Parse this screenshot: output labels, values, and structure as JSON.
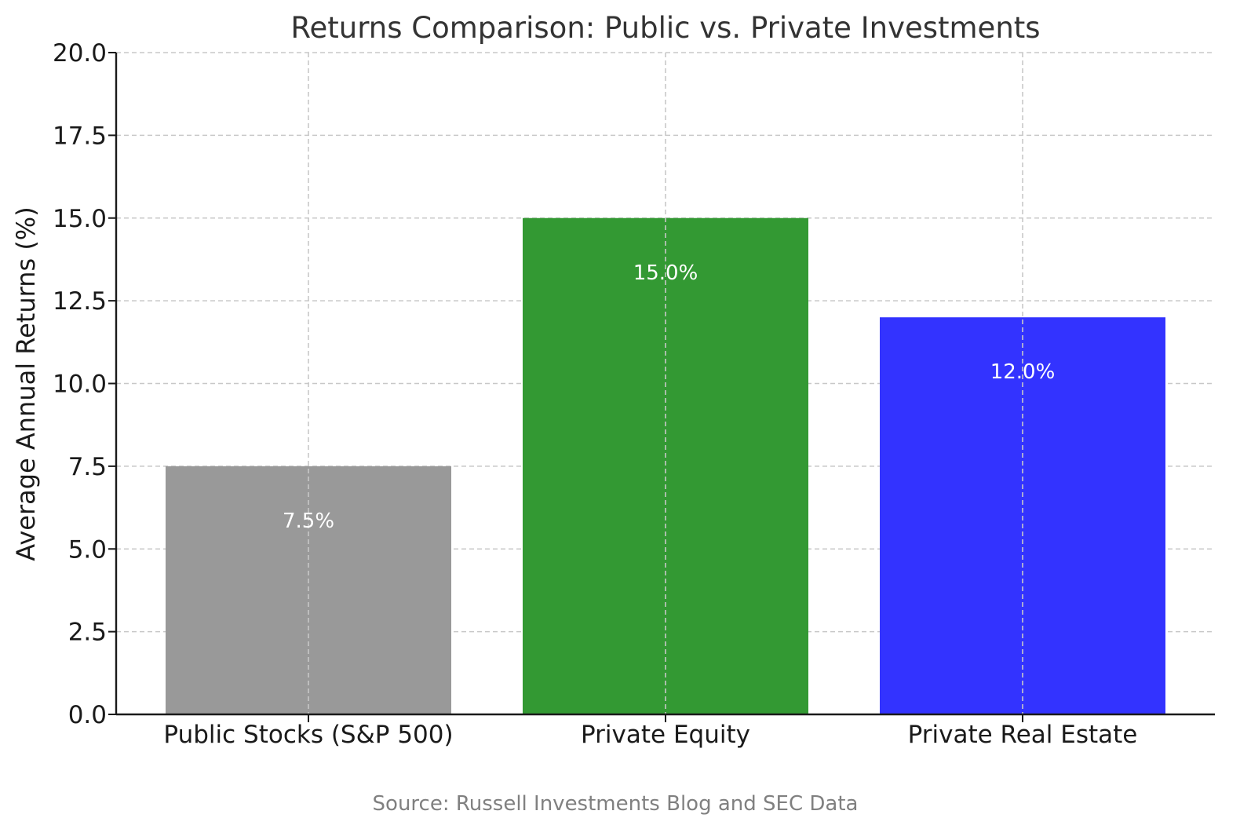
{
  "chart_data": {
    "type": "bar",
    "title": "Returns Comparison: Public vs. Private Investments",
    "xlabel": "",
    "ylabel": "Average Annual Returns (%)",
    "categories": [
      "Public Stocks (S&P 500)",
      "Private Equity",
      "Private Real Estate"
    ],
    "values": [
      7.5,
      15.0,
      12.0
    ],
    "data_labels": [
      "7.5%",
      "15.0%",
      "12.0%"
    ],
    "colors": [
      "#999999",
      "#339933",
      "#3333ff"
    ],
    "ylim": [
      0,
      20
    ],
    "yticks": [
      "0.0",
      "2.5",
      "5.0",
      "7.5",
      "10.0",
      "12.5",
      "15.0",
      "17.5",
      "20.0"
    ],
    "grid": true,
    "source_note": "Source: Russell Investments Blog and SEC Data"
  }
}
